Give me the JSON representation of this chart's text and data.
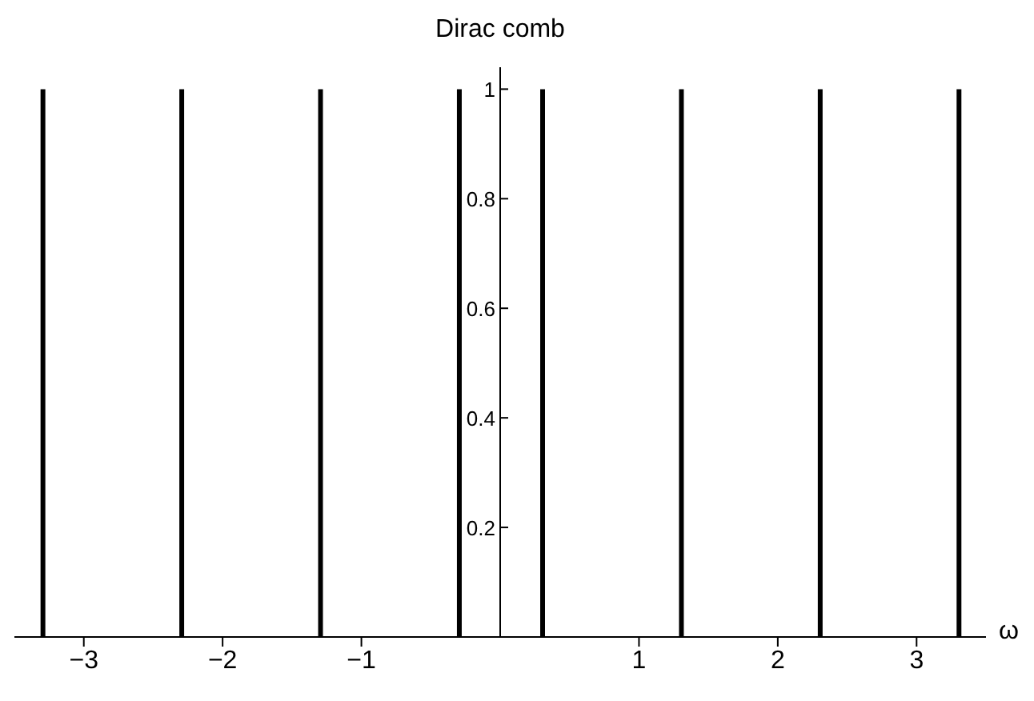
{
  "chart_data": {
    "type": "bar",
    "title": "Dirac comb",
    "xlabel": "ω",
    "x": [
      -3.3,
      -2.3,
      -1.3,
      -0.3,
      0.3,
      1.3,
      2.3,
      3.3
    ],
    "values": [
      1,
      1,
      1,
      1,
      1,
      1,
      1,
      1
    ],
    "color": "#000000",
    "xlim": [
      -3.5,
      3.5
    ],
    "ylim": [
      0,
      1.04
    ],
    "xticks": [
      {
        "value": -3,
        "label": "−3"
      },
      {
        "value": -2,
        "label": "−2"
      },
      {
        "value": -1,
        "label": "−1"
      },
      1,
      2,
      3
    ],
    "yticks": [
      0.2,
      0.4,
      0.6,
      0.8,
      1
    ],
    "grid": false,
    "legend": false
  }
}
